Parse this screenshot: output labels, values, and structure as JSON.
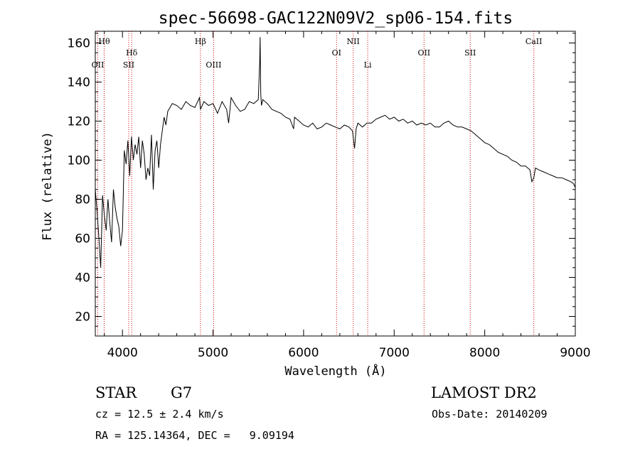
{
  "chart_data": {
    "type": "line",
    "title": "spec-56698-GAC122N09V2_sp06-154.fits",
    "xlabel": "Wavelength (Å)",
    "ylabel": "Flux (relative)",
    "xlim": [
      3700,
      9000
    ],
    "ylim": [
      10,
      166
    ],
    "xticks": [
      4000,
      5000,
      6000,
      7000,
      8000,
      9000
    ],
    "yticks": [
      20,
      40,
      60,
      80,
      100,
      120,
      140,
      160
    ],
    "grid": false,
    "legend": "none",
    "series_color": "#000000",
    "line_marker_color": "#cc0000",
    "series": [
      {
        "x": [
          3700,
          3720,
          3740,
          3760,
          3780,
          3800,
          3820,
          3840,
          3860,
          3880,
          3900,
          3920,
          3940,
          3960,
          3980,
          4000,
          4020,
          4040,
          4060,
          4080,
          4100,
          4120,
          4140,
          4160,
          4180,
          4200,
          4220,
          4240,
          4260,
          4280,
          4300,
          4320,
          4340,
          4360,
          4380,
          4400,
          4420,
          4440,
          4460,
          4480,
          4500,
          4550,
          4600,
          4650,
          4700,
          4750,
          4800,
          4850,
          4861,
          4900,
          4950,
          5000,
          5050,
          5100,
          5150,
          5172,
          5200,
          5250,
          5300,
          5350,
          5400,
          5450,
          5500,
          5515,
          5520,
          5527,
          5535,
          5550,
          5600,
          5650,
          5700,
          5750,
          5800,
          5850,
          5890,
          5900,
          5950,
          6000,
          6050,
          6100,
          6150,
          6200,
          6250,
          6300,
          6350,
          6400,
          6450,
          6500,
          6540,
          6563,
          6580,
          6600,
          6650,
          6700,
          6750,
          6800,
          6850,
          6900,
          6950,
          7000,
          7050,
          7100,
          7150,
          7200,
          7250,
          7300,
          7350,
          7400,
          7450,
          7500,
          7550,
          7600,
          7650,
          7700,
          7750,
          7800,
          7850,
          7900,
          7950,
          8000,
          8050,
          8100,
          8150,
          8200,
          8250,
          8300,
          8350,
          8400,
          8450,
          8500,
          8520,
          8542,
          8560,
          8600,
          8650,
          8700,
          8750,
          8800,
          8850,
          8900,
          8950,
          8980,
          9000
        ],
        "values": [
          85,
          74,
          60,
          45,
          82,
          72,
          64,
          80,
          68,
          58,
          85,
          76,
          70,
          66,
          56,
          64,
          105,
          98,
          110,
          92,
          112,
          100,
          108,
          103,
          112,
          96,
          110,
          103,
          90,
          96,
          92,
          113,
          85,
          105,
          110,
          96,
          108,
          115,
          122,
          118,
          125,
          129,
          128,
          126,
          130,
          128,
          127,
          132,
          126,
          130,
          128,
          129,
          124,
          130,
          126,
          119,
          132,
          128,
          125,
          126,
          130,
          129,
          131,
          150,
          163,
          134,
          128,
          131,
          129,
          126,
          125,
          124,
          122,
          121,
          116,
          122,
          120,
          118,
          117,
          119,
          116,
          117,
          119,
          118,
          117,
          116,
          118,
          117,
          115,
          106,
          116,
          119,
          117,
          119,
          119,
          121,
          122,
          123,
          121,
          122,
          120,
          121,
          119,
          120,
          118,
          119,
          118,
          119,
          117,
          117,
          119,
          120,
          118,
          117,
          117,
          116,
          115,
          113,
          111,
          109,
          108,
          106,
          104,
          103,
          102,
          100,
          99,
          97,
          97,
          95,
          89,
          91,
          96,
          95,
          94,
          93,
          92,
          91,
          91,
          90,
          89,
          88,
          86
        ]
      }
    ],
    "spectral_lines": [
      {
        "label": "Hθ",
        "x": 3798,
        "row": 1
      },
      {
        "label": "OII",
        "x": 3727,
        "row": 2
      },
      {
        "label": "Hδ",
        "x": 4102,
        "row": 1.5
      },
      {
        "label": "SII",
        "x": 4069,
        "row": 2
      },
      {
        "label": "Hβ",
        "x": 4861,
        "row": 1
      },
      {
        "label": "OIII",
        "x": 5007,
        "row": 2
      },
      {
        "label": "OI",
        "x": 6364,
        "row": 1.5
      },
      {
        "label": "NII",
        "x": 6548,
        "row": 1
      },
      {
        "label": "Li",
        "x": 6708,
        "row": 2
      },
      {
        "label": "OII",
        "x": 7330,
        "row": 1.5
      },
      {
        "label": "SII",
        "x": 7840,
        "row": 1.5
      },
      {
        "label": "CaII",
        "x": 8542,
        "row": 1
      }
    ]
  },
  "info": {
    "object_class": "STAR",
    "subclass": "G7",
    "survey": "LAMOST DR2",
    "redshift_line": "cz = 12.5 ± 2.4 km/s",
    "obs_date_line": "Obs-Date: 20140209",
    "coords_line": "RA = 125.14364, DEC =   9.09194"
  }
}
